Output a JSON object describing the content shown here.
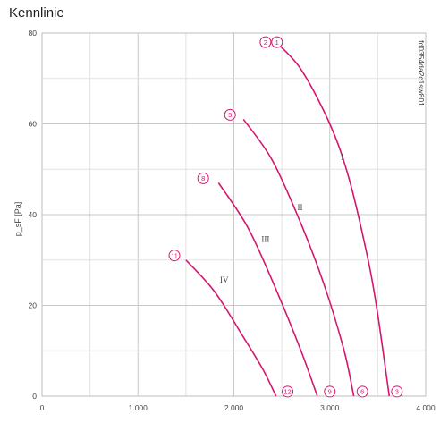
{
  "title": "Kennlinie",
  "side_code": "fd0354da2c1sw801",
  "chart_data": {
    "type": "line",
    "title": "",
    "xlabel": "",
    "ylabel": "p_sF [Pa]",
    "xlim": [
      0,
      4000
    ],
    "ylim": [
      0,
      80
    ],
    "x_ticks": [
      "0",
      "1.000",
      "2.000",
      "3.000",
      "4.000"
    ],
    "y_ticks": [
      "0",
      "20",
      "40",
      "60",
      "80"
    ],
    "grid": true,
    "line_color": "#d4166e",
    "series": [
      {
        "name": "I",
        "x": [
          2440,
          2700,
          3000,
          3200,
          3400,
          3500,
          3620
        ],
        "y": [
          78,
          72,
          60,
          48,
          30,
          18,
          0
        ],
        "label_at": [
          3130,
          52
        ],
        "start_marker": {
          "label": "1",
          "x": 2450,
          "y": 78
        },
        "end_marker": {
          "label": "3",
          "x": 3700,
          "y": 1
        }
      },
      {
        "name": "II",
        "x": [
          2100,
          2400,
          2700,
          2950,
          3150,
          3250
        ],
        "y": [
          61,
          52,
          38,
          24,
          10,
          0
        ],
        "label_at": [
          2690,
          41
        ],
        "start_marker": {
          "label": "5",
          "x": 1960,
          "y": 62
        },
        "end_marker": {
          "label": "6",
          "x": 3340,
          "y": 1
        }
      },
      {
        "name": "III",
        "x": [
          1840,
          2150,
          2450,
          2700,
          2870
        ],
        "y": [
          47,
          37,
          23,
          10,
          0
        ],
        "label_at": [
          2330,
          34
        ],
        "start_marker": {
          "label": "8",
          "x": 1680,
          "y": 48
        },
        "end_marker": {
          "label": "9",
          "x": 3000,
          "y": 1
        }
      },
      {
        "name": "IV",
        "x": [
          1500,
          1800,
          2100,
          2300,
          2440
        ],
        "y": [
          30,
          23,
          13,
          6,
          0
        ],
        "label_at": [
          1900,
          25
        ],
        "start_marker": {
          "label": "11",
          "x": 1380,
          "y": 31
        },
        "end_marker": {
          "label": "12",
          "x": 2560,
          "y": 1
        }
      }
    ],
    "extra_markers": [
      {
        "label": "2",
        "x": 2330,
        "y": 78
      }
    ]
  }
}
